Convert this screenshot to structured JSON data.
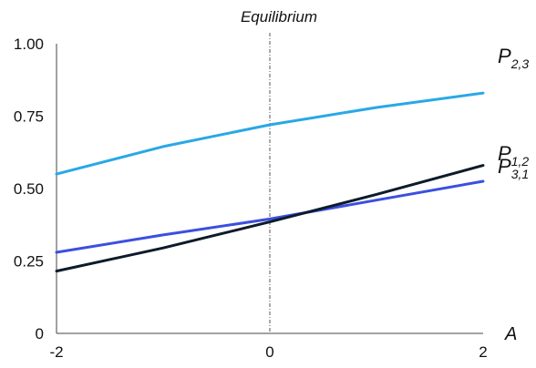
{
  "chart_data": {
    "type": "line",
    "title": "Equilibrium",
    "xlabel": "A",
    "ylabel": "",
    "xlim": [
      -2,
      2
    ],
    "ylim": [
      0,
      1
    ],
    "x_ticks": [
      "-2",
      "0",
      "2"
    ],
    "y_ticks": [
      "0",
      "0.25",
      "0.50",
      "0.75",
      "1.00"
    ],
    "reference_line": {
      "x": 0,
      "style": "dash-dot"
    },
    "series": [
      {
        "name": "P",
        "subscript": "2,3",
        "color": "#29a8e6",
        "x": [
          -2,
          -1,
          0,
          1,
          2
        ],
        "y": [
          0.55,
          0.645,
          0.72,
          0.78,
          0.83
        ]
      },
      {
        "name": "P",
        "subscript": "1,2",
        "color": "#3b4fe0",
        "x": [
          -2,
          -1,
          0,
          1,
          2
        ],
        "y": [
          0.28,
          0.34,
          0.395,
          0.46,
          0.525
        ]
      },
      {
        "name": "P",
        "subscript": "3,1",
        "color": "#0d1b2a",
        "x": [
          -2,
          -1,
          0,
          1,
          2
        ],
        "y": [
          0.215,
          0.295,
          0.385,
          0.48,
          0.58
        ]
      }
    ]
  }
}
